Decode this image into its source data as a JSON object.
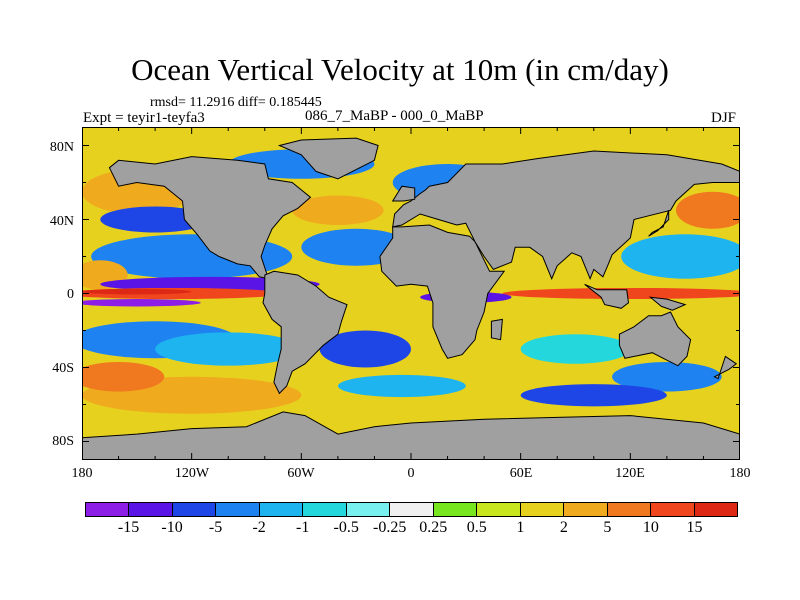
{
  "title": "Ocean Vertical Velocity at 10m (in cm/day)",
  "stats_text": "rmsd= 11.2916 diff= 0.185445",
  "left_string": "Expt = teyir1-teyfa3",
  "center_string": "086_7_MaBP - 000_0_MaBP",
  "right_string": "DJF",
  "lat_labels": [
    "80N",
    "40N",
    "0",
    "40S",
    "80S"
  ],
  "lon_labels": [
    "180",
    "120W",
    "60W",
    "0",
    "60E",
    "120E",
    "180"
  ],
  "colorbar": {
    "levels": [
      "-15",
      "-10",
      "-5",
      "-2",
      "-1",
      "-0.5",
      "-0.25",
      "0.25",
      "0.5",
      "1",
      "2",
      "5",
      "10",
      "15"
    ],
    "colors": [
      "#8c1ee6",
      "#5a14e6",
      "#1e46e6",
      "#1e82f0",
      "#1eb4f0",
      "#23d7dc",
      "#78f0f0",
      "#f0f0f0",
      "#78e61e",
      "#c8e61e",
      "#e6d21e",
      "#f0aa1e",
      "#f0781e",
      "#f0461e",
      "#dc2814"
    ]
  },
  "map_colors": {
    "land": "#a0a0a0",
    "coast": "#000000"
  },
  "chart_data": {
    "type": "heatmap",
    "title": "Ocean Vertical Velocity at 10m (in cm/day)",
    "variable": "Ocean Vertical Velocity at 10m",
    "units": "cm/day",
    "rmsd": 11.2916,
    "diff": 0.185445,
    "experiment": "teyir1-teyfa3",
    "comparison": "086_7_MaBP - 000_0_MaBP",
    "season": "DJF",
    "x_range": [
      -180,
      180
    ],
    "y_range": [
      -90,
      90
    ],
    "contour_levels": [
      -15,
      -10,
      -5,
      -2,
      -1,
      -0.5,
      -0.25,
      0.25,
      0.5,
      1,
      2,
      5,
      10,
      15
    ]
  }
}
